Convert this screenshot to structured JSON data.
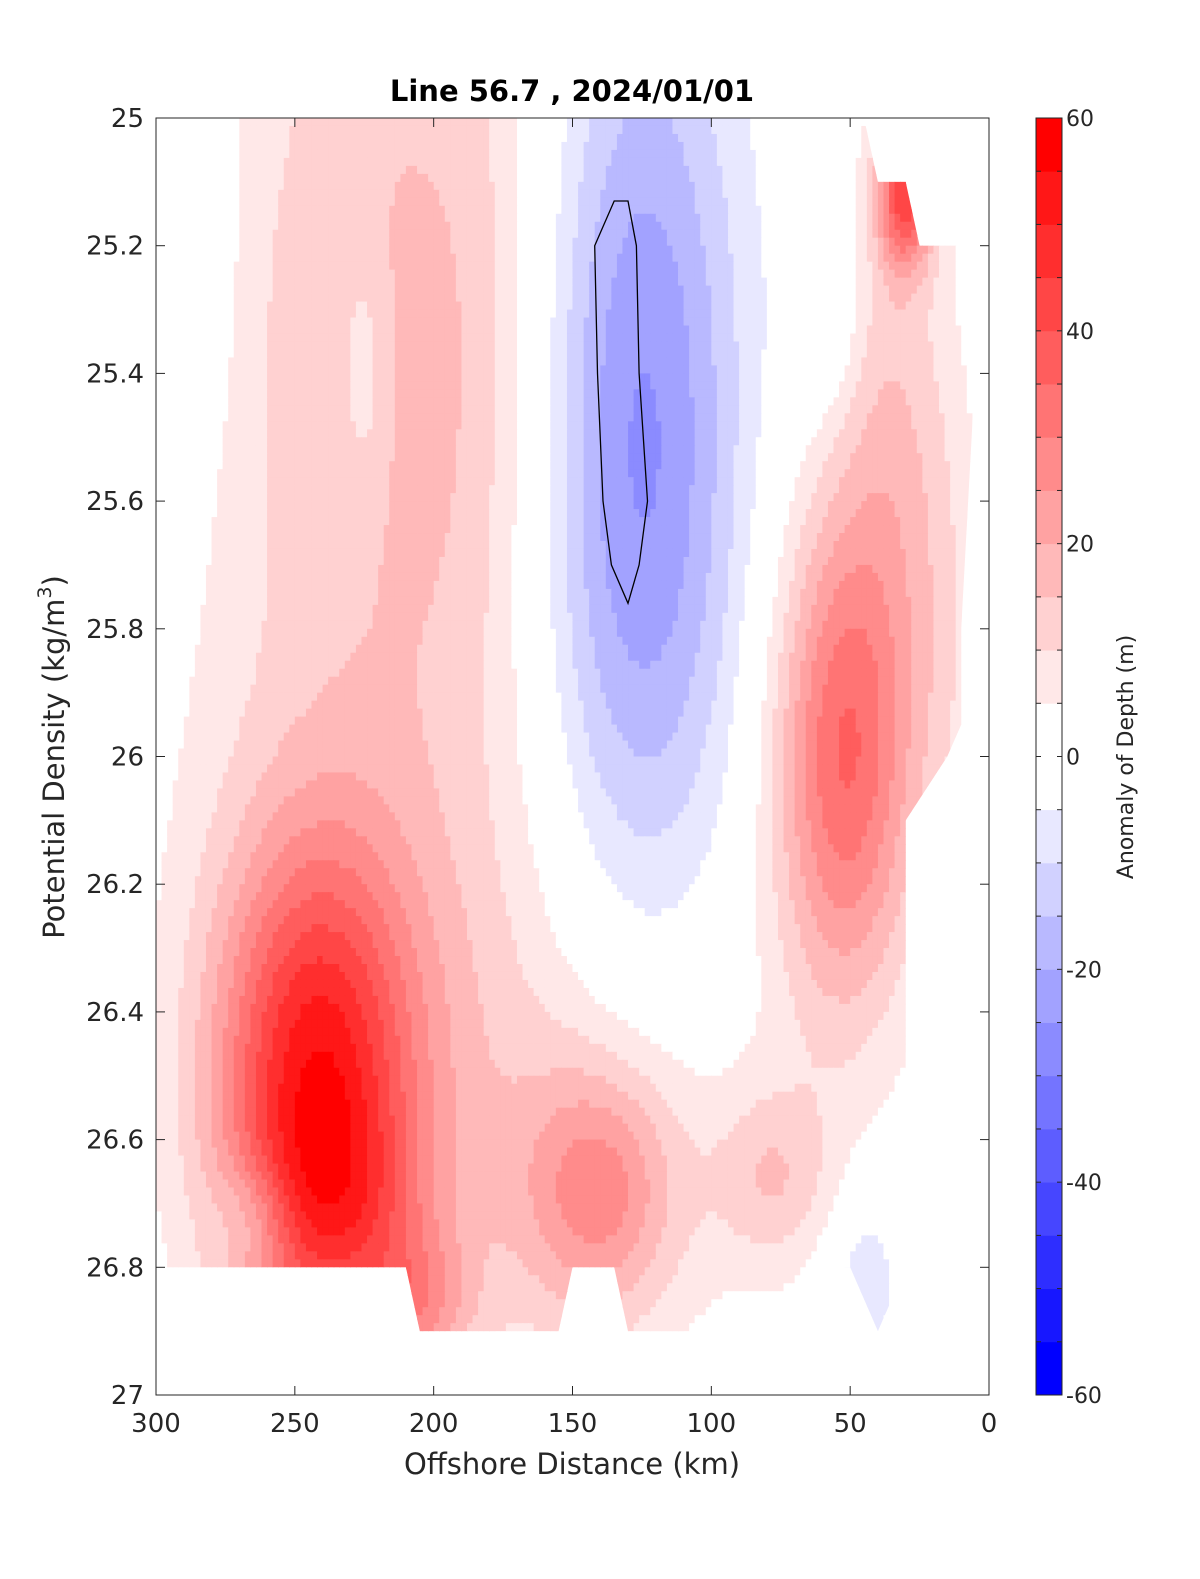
{
  "chart_data": {
    "type": "heatmap",
    "subtype": "filled-contour",
    "title": "Line 56.7 , 2024/01/01",
    "xlabel": "Offshore Distance (km)",
    "ylabel_main": "Potential Density (kg/m",
    "ylabel_sup": "3",
    "ylabel_tail": ")",
    "xlim": [
      300,
      0
    ],
    "ylim": [
      25,
      27
    ],
    "x_ticks": [
      {
        "v": 300,
        "label": "300"
      },
      {
        "v": 250,
        "label": "250"
      },
      {
        "v": 200,
        "label": "200"
      },
      {
        "v": 150,
        "label": "150"
      },
      {
        "v": 100,
        "label": "100"
      },
      {
        "v": 50,
        "label": "50"
      },
      {
        "v": 0,
        "label": "0"
      }
    ],
    "y_ticks": [
      {
        "v": 25,
        "label": "25"
      },
      {
        "v": 25.2,
        "label": "25.2"
      },
      {
        "v": 25.4,
        "label": "25.4"
      },
      {
        "v": 25.6,
        "label": "25.6"
      },
      {
        "v": 25.8,
        "label": "25.8"
      },
      {
        "v": 26,
        "label": "26"
      },
      {
        "v": 26.2,
        "label": "26.2"
      },
      {
        "v": 26.4,
        "label": "26.4"
      },
      {
        "v": 26.6,
        "label": "26.6"
      },
      {
        "v": 26.8,
        "label": "26.8"
      },
      {
        "v": 27,
        "label": "27"
      }
    ],
    "colorbar": {
      "label": "Anomaly of Depth (m)",
      "range": [
        -60,
        60
      ],
      "levels": [
        -60,
        -55,
        -50,
        -45,
        -40,
        -35,
        -30,
        -25,
        -20,
        -15,
        -10,
        -5,
        0,
        5,
        10,
        15,
        20,
        25,
        30,
        35,
        40,
        45,
        50,
        55,
        60
      ],
      "tick_labels": [
        {
          "v": 60,
          "label": "60"
        },
        {
          "v": 40,
          "label": "40"
        },
        {
          "v": 20,
          "label": "20"
        },
        {
          "v": 0,
          "label": "0"
        },
        {
          "v": -20,
          "label": "-20"
        },
        {
          "v": -40,
          "label": "-40"
        },
        {
          "v": -60,
          "label": "-60"
        }
      ]
    },
    "data_extent": [
      {
        "x": 300,
        "y": 25
      },
      {
        "x": 45,
        "y": 25
      },
      {
        "x": 40,
        "y": 25.1
      },
      {
        "x": 30,
        "y": 25.1
      },
      {
        "x": 25,
        "y": 25.2
      },
      {
        "x": 5,
        "y": 25.2
      },
      {
        "x": 5,
        "y": 25.4
      },
      {
        "x": 10,
        "y": 25.8
      },
      {
        "x": 10,
        "y": 25.95
      },
      {
        "x": 15,
        "y": 26.0
      },
      {
        "x": 30,
        "y": 26.1
      },
      {
        "x": 30,
        "y": 26.6
      },
      {
        "x": 35,
        "y": 26.75
      },
      {
        "x": 35,
        "y": 26.85
      },
      {
        "x": 40,
        "y": 26.9
      },
      {
        "x": 50,
        "y": 26.8
      },
      {
        "x": 65,
        "y": 26.8
      },
      {
        "x": 70,
        "y": 26.9
      },
      {
        "x": 130,
        "y": 26.9
      },
      {
        "x": 135,
        "y": 26.8
      },
      {
        "x": 150,
        "y": 26.8
      },
      {
        "x": 155,
        "y": 26.9
      },
      {
        "x": 205,
        "y": 26.9
      },
      {
        "x": 210,
        "y": 26.8
      },
      {
        "x": 300,
        "y": 26.8
      }
    ],
    "anomaly_sources": [
      {
        "x": 243,
        "y": 26.52,
        "amp": 48,
        "sx": 26,
        "sy": 0.28
      },
      {
        "x": 232,
        "y": 26.72,
        "amp": 12,
        "sx": 22,
        "sy": 0.12
      },
      {
        "x": 52,
        "y": 26.0,
        "amp": 34,
        "sx": 18,
        "sy": 0.28
      },
      {
        "x": 140,
        "y": 26.68,
        "amp": 22,
        "sx": 20,
        "sy": 0.14
      },
      {
        "x": 78,
        "y": 26.66,
        "amp": 12,
        "sx": 15,
        "sy": 0.1
      },
      {
        "x": 205,
        "y": 26.86,
        "amp": 14,
        "sx": 14,
        "sy": 0.08
      },
      {
        "x": 30,
        "y": 25.12,
        "amp": 38,
        "sx": 7,
        "sy": 0.08
      },
      {
        "x": 200,
        "y": 25.4,
        "amp": 18,
        "sx": 60,
        "sy": 0.6
      },
      {
        "x": 165,
        "y": 26.55,
        "amp": 10,
        "sx": 60,
        "sy": 0.35
      },
      {
        "x": 35,
        "y": 25.45,
        "amp": 12,
        "sx": 15,
        "sy": 0.3
      },
      {
        "x": 15,
        "y": 25.8,
        "amp": 6,
        "sx": 12,
        "sy": 0.3
      },
      {
        "x": 128,
        "y": 25.5,
        "amp": -34,
        "sx": 28,
        "sy": 0.55
      },
      {
        "x": 265,
        "y": 26.72,
        "amp": -10,
        "sx": 10,
        "sy": 0.06
      },
      {
        "x": 58,
        "y": 25.3,
        "amp": -8,
        "sx": 9,
        "sy": 0.12
      },
      {
        "x": 225,
        "y": 25.4,
        "amp": -8,
        "sx": 7,
        "sy": 0.15
      },
      {
        "x": 45,
        "y": 26.82,
        "amp": -10,
        "sx": 9,
        "sy": 0.1
      },
      {
        "x": 290,
        "y": 25.2,
        "amp": -8,
        "sx": 15,
        "sy": 0.3
      }
    ],
    "zero_contour": [
      {
        "x": 135,
        "y": 25.13
      },
      {
        "x": 140,
        "y": 25.18
      },
      {
        "x": 142,
        "y": 25.2
      },
      {
        "x": 141,
        "y": 25.4
      },
      {
        "x": 139,
        "y": 25.6
      },
      {
        "x": 136,
        "y": 25.7
      },
      {
        "x": 130,
        "y": 25.76
      },
      {
        "x": 126,
        "y": 25.7
      },
      {
        "x": 123,
        "y": 25.6
      },
      {
        "x": 126,
        "y": 25.4
      },
      {
        "x": 127,
        "y": 25.2
      },
      {
        "x": 130,
        "y": 25.13
      }
    ]
  }
}
